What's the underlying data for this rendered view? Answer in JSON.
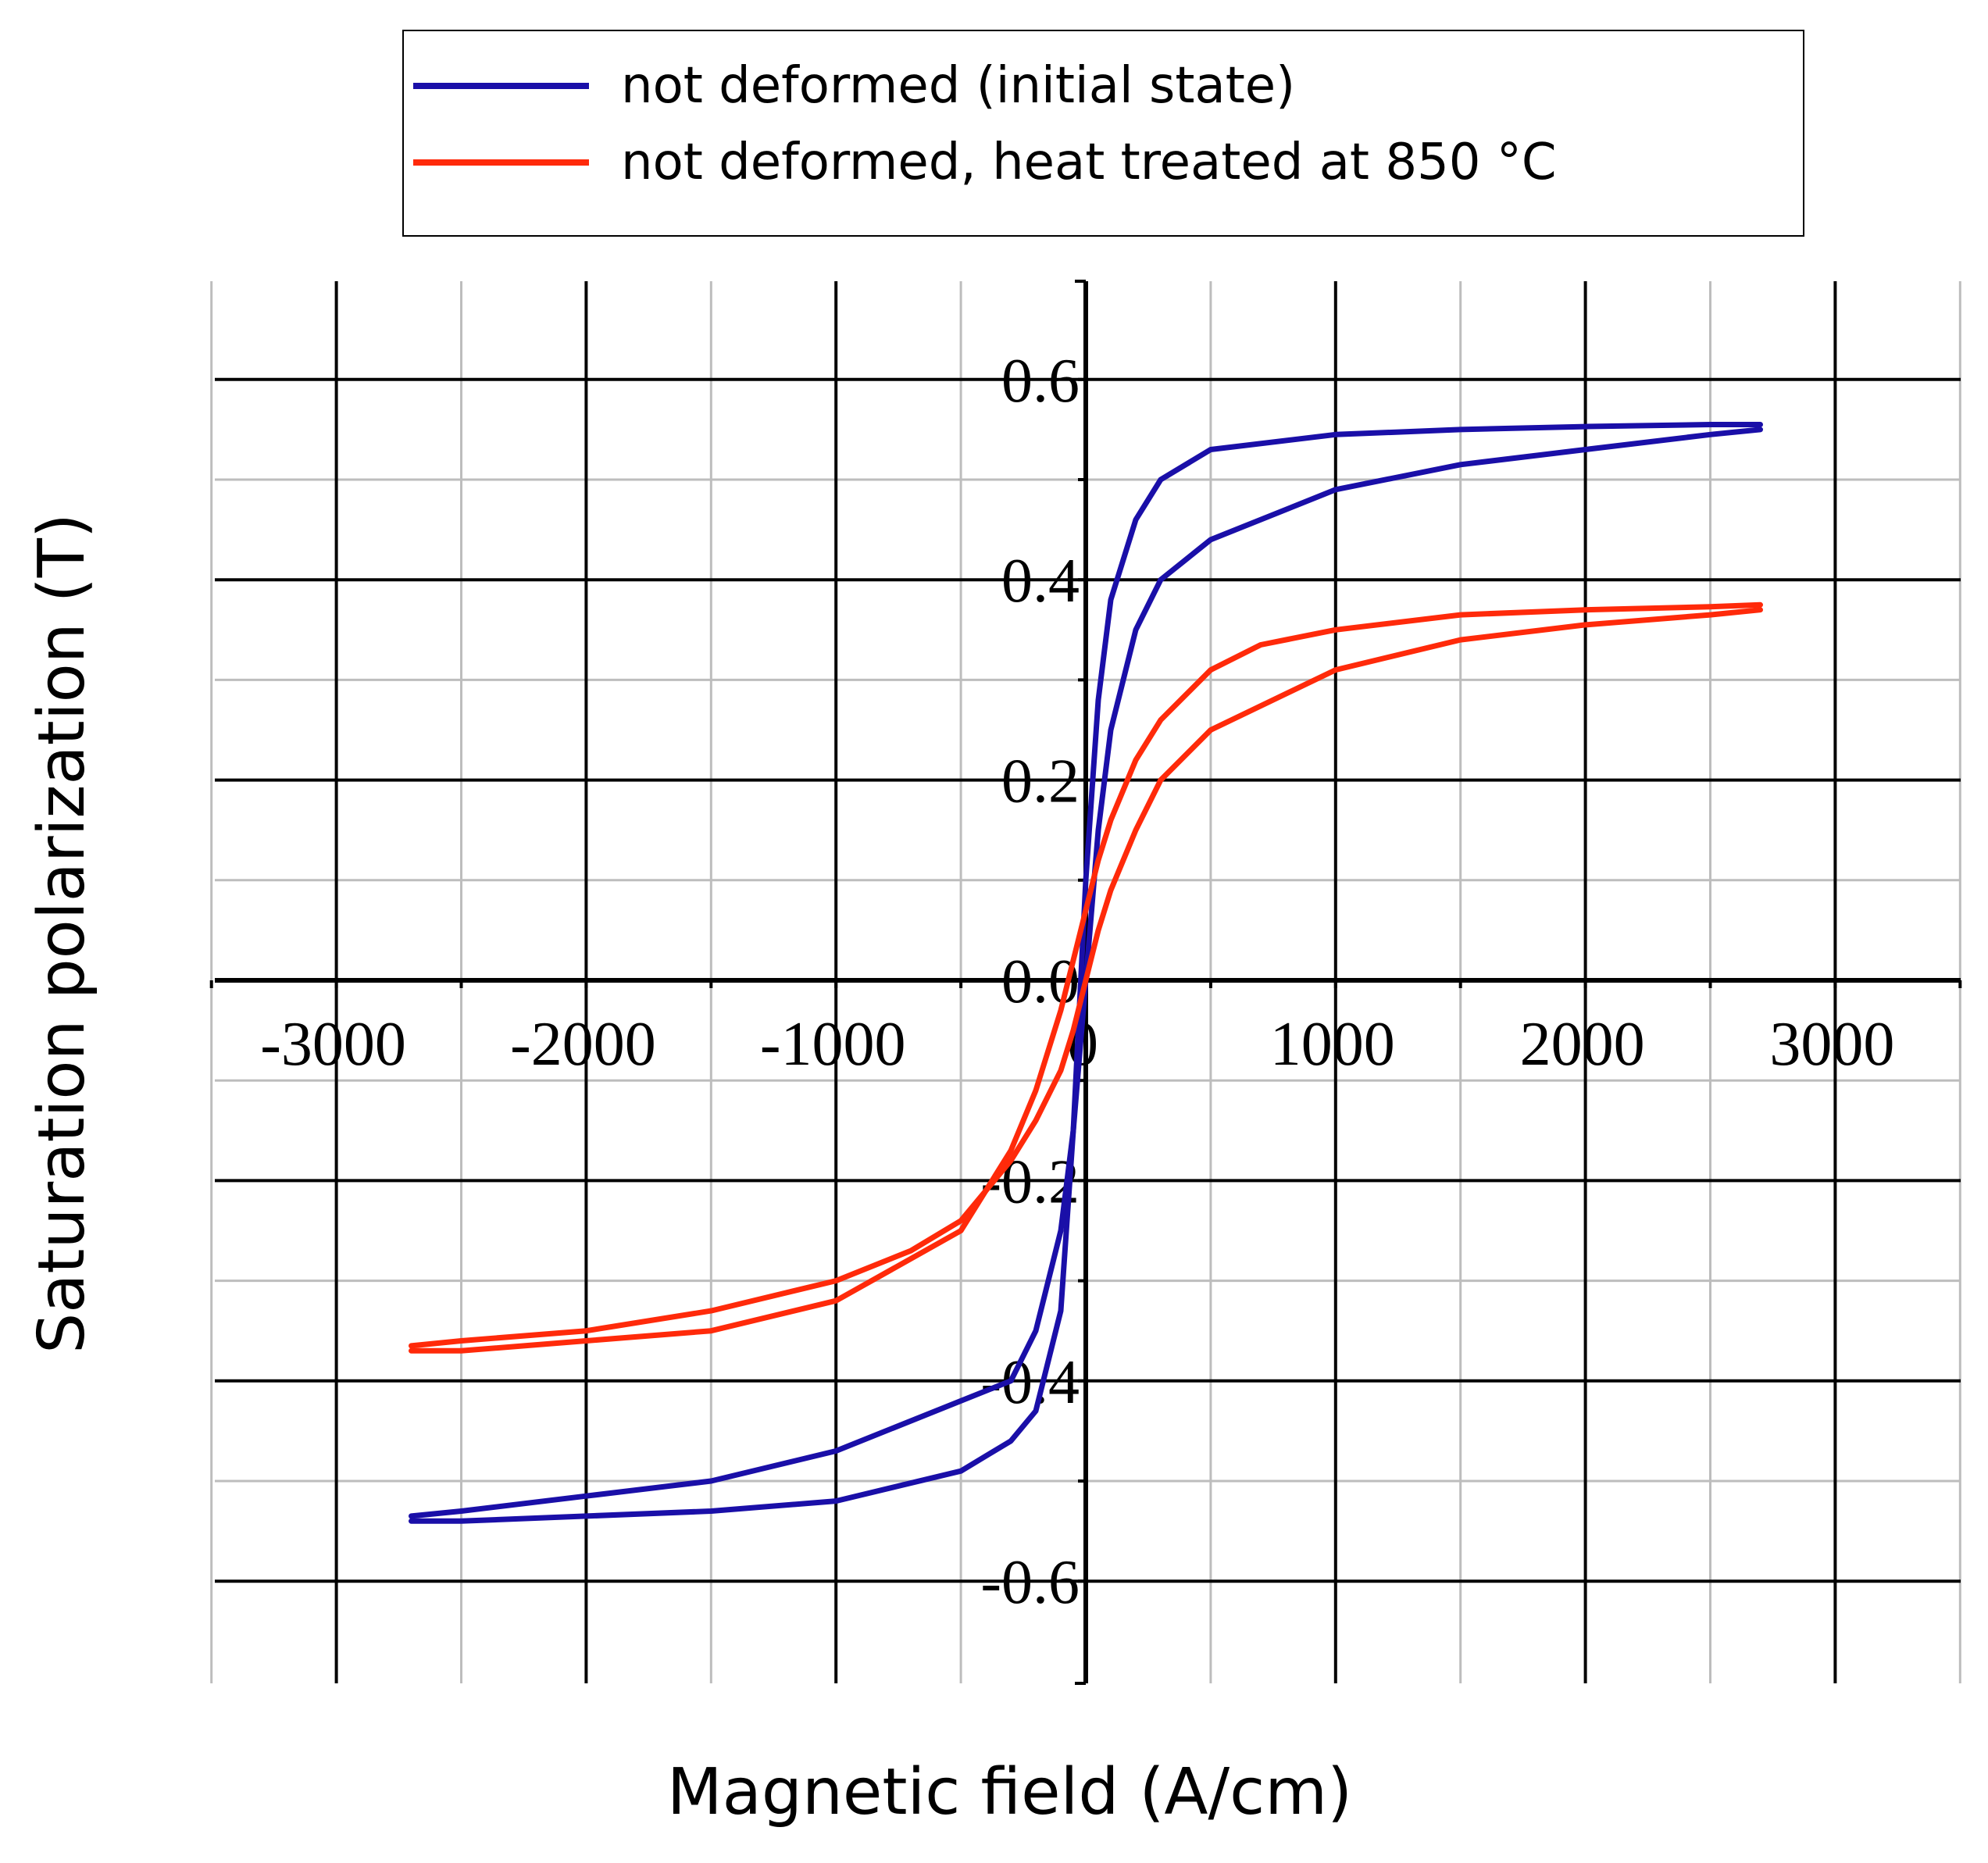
{
  "chart_data": {
    "type": "line",
    "title": "",
    "xlabel": "Magnetic field (A/cm)",
    "ylabel": "Saturation polarization (T)",
    "xlim": [
      -3500,
      3500
    ],
    "ylim": [
      -0.7,
      0.7
    ],
    "x_ticks": [
      -3000,
      -2000,
      -1000,
      0,
      1000,
      2000,
      3000
    ],
    "x_tick_labels": [
      "-3000",
      "-2000",
      "-1000",
      "0",
      "1000",
      "2000",
      "3000"
    ],
    "y_ticks": [
      -0.6,
      -0.4,
      -0.2,
      0.0,
      0.2,
      0.4,
      0.6
    ],
    "y_tick_labels": [
      "-0.6",
      "-0.4",
      "-0.2",
      "0.0",
      "0.2",
      "0.4",
      "0.6"
    ],
    "grid": true,
    "legend_position": "top",
    "series": [
      {
        "name": "not deformed (initial state)",
        "color": "#1a0fa8",
        "descending": {
          "x": [
            2700,
            2500,
            2000,
            1500,
            1000,
            500,
            300,
            200,
            100,
            50,
            0,
            -50,
            -100,
            -200,
            -300,
            -500,
            -1000,
            -1500,
            -2000,
            -2500,
            -2700
          ],
          "y": [
            0.555,
            0.555,
            0.553,
            0.55,
            0.545,
            0.53,
            0.5,
            0.46,
            0.38,
            0.28,
            0.1,
            -0.15,
            -0.33,
            -0.43,
            -0.46,
            -0.49,
            -0.52,
            -0.53,
            -0.535,
            -0.54,
            -0.54
          ]
        },
        "ascending": {
          "x": [
            -2700,
            -2500,
            -2000,
            -1500,
            -1000,
            -500,
            -300,
            -200,
            -100,
            -50,
            0,
            50,
            100,
            200,
            300,
            500,
            1000,
            1500,
            2000,
            2500,
            2700
          ],
          "y": [
            -0.535,
            -0.53,
            -0.515,
            -0.5,
            -0.47,
            -0.42,
            -0.4,
            -0.35,
            -0.25,
            -0.15,
            0.0,
            0.15,
            0.25,
            0.35,
            0.4,
            0.44,
            0.49,
            0.515,
            0.53,
            0.545,
            0.55
          ]
        }
      },
      {
        "name": "not deformed, heat treated at 850 °C",
        "color": "#ff2a0a",
        "descending": {
          "x": [
            2700,
            2500,
            2000,
            1500,
            1000,
            700,
            500,
            300,
            200,
            100,
            50,
            0,
            -50,
            -100,
            -200,
            -300,
            -500,
            -1000,
            -1500,
            -2000,
            -2500,
            -2700
          ],
          "y": [
            0.375,
            0.373,
            0.37,
            0.365,
            0.35,
            0.335,
            0.31,
            0.26,
            0.22,
            0.16,
            0.12,
            0.07,
            0.02,
            -0.03,
            -0.11,
            -0.17,
            -0.25,
            -0.32,
            -0.35,
            -0.36,
            -0.37,
            -0.37
          ]
        },
        "ascending": {
          "x": [
            -2700,
            -2500,
            -2000,
            -1500,
            -1000,
            -700,
            -500,
            -300,
            -200,
            -100,
            -50,
            0,
            50,
            100,
            200,
            300,
            500,
            1000,
            1500,
            2000,
            2500,
            2700
          ],
          "y": [
            -0.365,
            -0.36,
            -0.35,
            -0.33,
            -0.3,
            -0.27,
            -0.24,
            -0.18,
            -0.14,
            -0.09,
            -0.05,
            0.0,
            0.05,
            0.09,
            0.15,
            0.2,
            0.25,
            0.31,
            0.34,
            0.355,
            0.365,
            0.37
          ]
        }
      }
    ]
  }
}
